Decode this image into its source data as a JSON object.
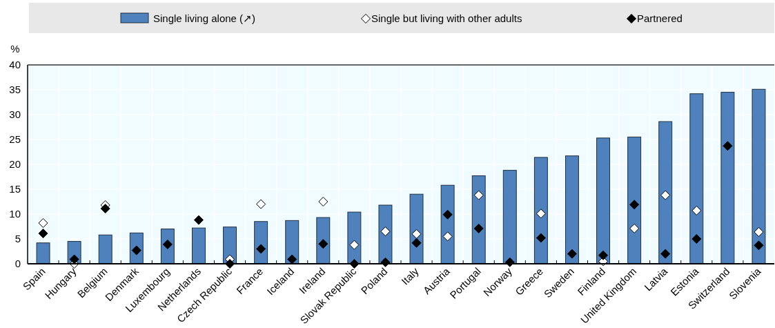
{
  "chart_data": {
    "type": "bar",
    "ylabel": "%",
    "categories": [
      "Spain",
      "Hungary",
      "Belgium",
      "Denmark",
      "Luxembourg",
      "Netherlands",
      "Czech Republic",
      "France",
      "Iceland",
      "Ireland",
      "Slovak Republic",
      "Poland",
      "Italy",
      "Austria",
      "Portugal",
      "Norway",
      "Greece",
      "Sweden",
      "Finland",
      "United Kingdom",
      "Latvia",
      "Estonia",
      "Switzerland",
      "Slovenia"
    ],
    "series": [
      {
        "name": "Single living alone (↗)",
        "color": "#4f81bd",
        "values": [
          4.2,
          4.5,
          5.8,
          6.2,
          7.0,
          7.2,
          7.4,
          8.5,
          8.7,
          9.3,
          10.4,
          11.8,
          14.0,
          15.8,
          17.7,
          18.8,
          21.4,
          21.7,
          25.3,
          25.5,
          28.6,
          34.2,
          34.5,
          35.1
        ]
      },
      {
        "name": "Single but living with other adults",
        "type": "scatter",
        "color": "#ffffff",
        "marker": "diamond",
        "values": [
          8.2,
          0,
          11.8,
          null,
          null,
          null,
          0.9,
          12.0,
          null,
          12.5,
          3.8,
          6.5,
          6.0,
          5.5,
          13.8,
          null,
          10.1,
          null,
          0.5,
          7.1,
          13.8,
          10.7,
          null,
          6.4
        ]
      },
      {
        "name": "Partnered",
        "type": "scatter",
        "color": "#000000",
        "marker": "diamond",
        "values": [
          6.1,
          0.9,
          11.1,
          2.7,
          3.9,
          8.8,
          0,
          3.0,
          0.9,
          4.0,
          0,
          0.3,
          4.2,
          9.9,
          7.1,
          0.3,
          5.2,
          2.0,
          1.7,
          11.9,
          2.0,
          5.0,
          23.7,
          3.7
        ]
      }
    ],
    "ylim": [
      0,
      40
    ],
    "yticks": [
      0,
      5,
      10,
      15,
      20,
      25,
      30,
      35,
      40
    ],
    "grid": true,
    "legend": "top"
  }
}
